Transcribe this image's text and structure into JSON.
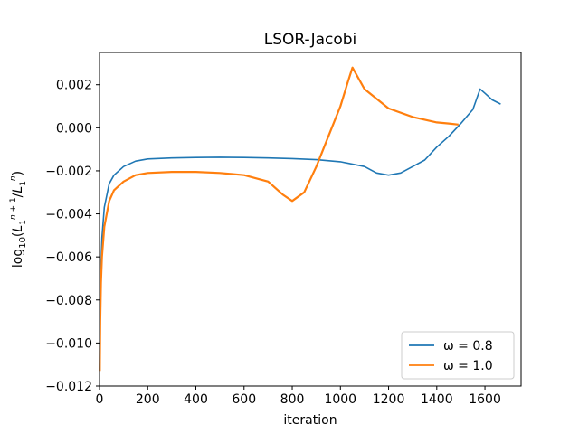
{
  "chart_data": {
    "type": "line",
    "title": "LSOR-Jacobi",
    "xlabel": "iteration",
    "ylabel": "log10(L1^{n+1}/L1^{n})",
    "xlim": [
      0,
      1750
    ],
    "ylim": [
      -0.012,
      0.0035
    ],
    "xticks": [
      0,
      200,
      400,
      600,
      800,
      1000,
      1200,
      1400,
      1600
    ],
    "yticks": [
      {
        "value": 0.002,
        "label": "0.002"
      },
      {
        "value": 0.0,
        "label": "0.000"
      },
      {
        "value": -0.002,
        "label": "−0.002"
      },
      {
        "value": -0.004,
        "label": "−0.004"
      },
      {
        "value": -0.006,
        "label": "−0.006"
      },
      {
        "value": -0.008,
        "label": "−0.008"
      },
      {
        "value": -0.01,
        "label": "−0.010"
      },
      {
        "value": -0.012,
        "label": "−0.012"
      }
    ],
    "grid": false,
    "legend_position": "lower-right",
    "series": [
      {
        "name": "ω = 0.8",
        "legend_label": "ω = 0.8",
        "color": "#1f77b4",
        "x": [
          1,
          3,
          6,
          10,
          20,
          40,
          60,
          100,
          150,
          200,
          300,
          400,
          500,
          600,
          700,
          800,
          900,
          1000,
          1100,
          1150,
          1200,
          1250,
          1300,
          1350,
          1400,
          1450,
          1500,
          1550,
          1580,
          1600,
          1630,
          1665
        ],
        "y": [
          -0.0113,
          -0.0085,
          -0.0064,
          -0.0051,
          -0.0037,
          -0.0026,
          -0.0022,
          -0.0018,
          -0.00155,
          -0.00145,
          -0.0014,
          -0.00138,
          -0.00137,
          -0.00138,
          -0.0014,
          -0.00143,
          -0.00148,
          -0.00158,
          -0.0018,
          -0.0021,
          -0.0022,
          -0.0021,
          -0.0018,
          -0.0015,
          -0.0009,
          -0.0004,
          0.0002,
          0.00085,
          0.0018,
          0.0016,
          0.0013,
          0.0011
        ]
      },
      {
        "name": "ω = 1.0",
        "legend_label": "ω = 1.0",
        "color": "#ff7f0e",
        "x": [
          1,
          3,
          6,
          10,
          20,
          40,
          60,
          100,
          150,
          200,
          300,
          400,
          500,
          600,
          700,
          760,
          800,
          850,
          900,
          950,
          1000,
          1030,
          1050,
          1100,
          1200,
          1300,
          1400,
          1450,
          1490
        ],
        "y": [
          -0.0113,
          -0.009,
          -0.0072,
          -0.006,
          -0.0046,
          -0.0034,
          -0.0029,
          -0.0025,
          -0.0022,
          -0.0021,
          -0.00205,
          -0.00205,
          -0.0021,
          -0.0022,
          -0.0025,
          -0.0031,
          -0.0034,
          -0.003,
          -0.0018,
          -0.0004,
          0.001,
          0.0021,
          0.0028,
          0.0018,
          0.0009,
          0.0005,
          0.00025,
          0.0002,
          0.00015
        ]
      }
    ]
  }
}
